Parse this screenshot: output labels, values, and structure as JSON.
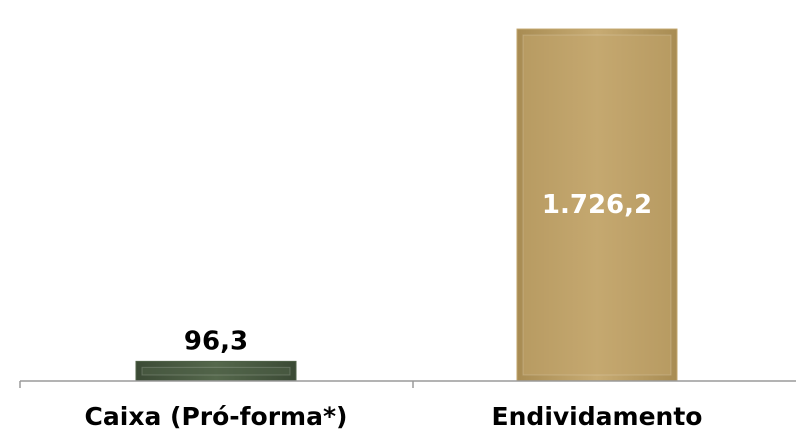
{
  "chart_data": {
    "type": "bar",
    "categories": [
      "Caixa (Pró-forma*)",
      "Endividamento"
    ],
    "values": [
      96.3,
      1726.2
    ],
    "value_labels": [
      "96,3",
      "1.726,2"
    ],
    "value_label_position": [
      "above",
      "inside"
    ],
    "colors": [
      "#4f6147",
      "#c2a66d"
    ],
    "label_colors": [
      "#000000",
      "#ffffff"
    ],
    "title": "",
    "xlabel": "",
    "ylabel": "",
    "ylim": [
      0,
      1800
    ],
    "grid": false,
    "legend": "none"
  }
}
